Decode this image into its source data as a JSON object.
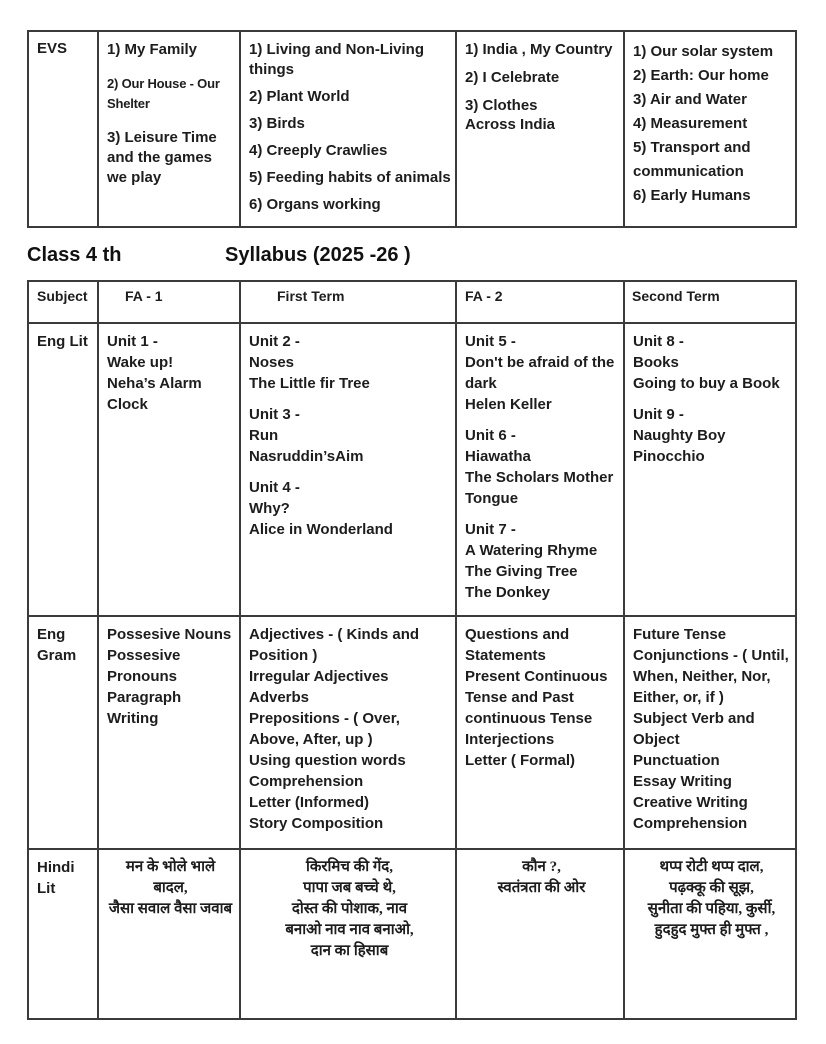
{
  "colors": {
    "background": "#ffffff",
    "text": "#1d1d1d",
    "border": "#3b3b3b"
  },
  "evs_table": {
    "subject_label": "EVS",
    "fa1_items": [
      "1) My Family",
      "2) Our House - Our Shelter",
      "3) Leisure Time and the games we play"
    ],
    "first_term_items": [
      "1) Living and Non-Living things",
      "2) Plant World",
      "3) Birds",
      "4) Creeply Crawlies",
      "5) Feeding habits of animals",
      "6) Organs working"
    ],
    "fa2_items": [
      "1) India , My Country",
      "2) I Celebrate",
      "3) Clothes\nAcross India"
    ],
    "second_term_items": [
      "1) Our solar system",
      "2) Earth: Our home",
      "3) Air and Water",
      "4) Measurement",
      "5) Transport and\ncommunication",
      "6) Early Humans"
    ]
  },
  "heading": {
    "class_label": "Class 4 th",
    "syllabus_label": "Syllabus (2025 -26 )"
  },
  "syllabus_table": {
    "headers": [
      "Subject",
      "FA - 1",
      "First Term",
      "FA - 2",
      "Second Term"
    ],
    "rows": [
      {
        "subject": "Eng Lit",
        "fa1_blocks": [
          "Unit 1 -\nWake up!\nNeha’s Alarm Clock"
        ],
        "first_term_blocks": [
          "Unit 2 -\nNoses\nThe Little fir Tree",
          "Unit 3 -\nRun\nNasruddin’sAim",
          "Unit 4 -\nWhy?\nAlice in Wonderland"
        ],
        "fa2_blocks": [
          "Unit 5 -\nDon't be afraid of the\ndark\nHelen Keller",
          "Unit 6 -\nHiawatha\nThe Scholars Mother\nTongue",
          "Unit 7 -\nA Watering Rhyme\nThe Giving Tree\nThe Donkey"
        ],
        "second_term_blocks": [
          "Unit 8 -\nBooks\nGoing to buy a Book",
          "Unit 9 -\nNaughty Boy\nPinocchio"
        ]
      },
      {
        "subject": "Eng\nGram",
        "fa1_blocks": [
          "Possesive Nouns\nPossesive Pronouns\nParagraph Writing"
        ],
        "first_term_blocks": [
          "Adjectives - ( Kinds and\nPosition )\nIrregular Adjectives\nAdverbs\nPrepositions - ( Over,\nAbove, After, up )\nUsing question words\nComprehension\nLetter (Informed)\nStory Composition"
        ],
        "fa2_blocks": [
          "Questions and\nStatements\nPresent Continuous\nTense and Past\ncontinuous Tense\nInterjections\nLetter ( Formal)"
        ],
        "second_term_blocks": [
          "Future Tense\nConjunctions - ( Until,\nWhen, Neither, Nor,\nEither, or, if )\nSubject Verb and\nObject\nPunctuation\nEssay Writing\nCreative Writing\nComprehension"
        ]
      },
      {
        "subject": "Hindi Lit",
        "fa1_blocks": [
          "मन के भोले भाले बादल,\nजैसा सवाल वैसा जवाब"
        ],
        "first_term_blocks": [
          "किरमिच की गेंद,\nपापा जब बच्चे थे,\nदोस्त की पोशाक, नाव\nबनाओ नाव नाव बनाओ,\nदान का हिसाब"
        ],
        "fa2_blocks": [
          "कौन ?,\nस्वतंत्रता की ओर"
        ],
        "second_term_blocks": [
          "थप्प रोटी थप्प दाल,\nपढ़क्कू की सूझ,\nसुनीता की पहिया, कुर्सी,\nहुदहुद मुफ्त ही मुफ्त ,"
        ]
      }
    ]
  }
}
